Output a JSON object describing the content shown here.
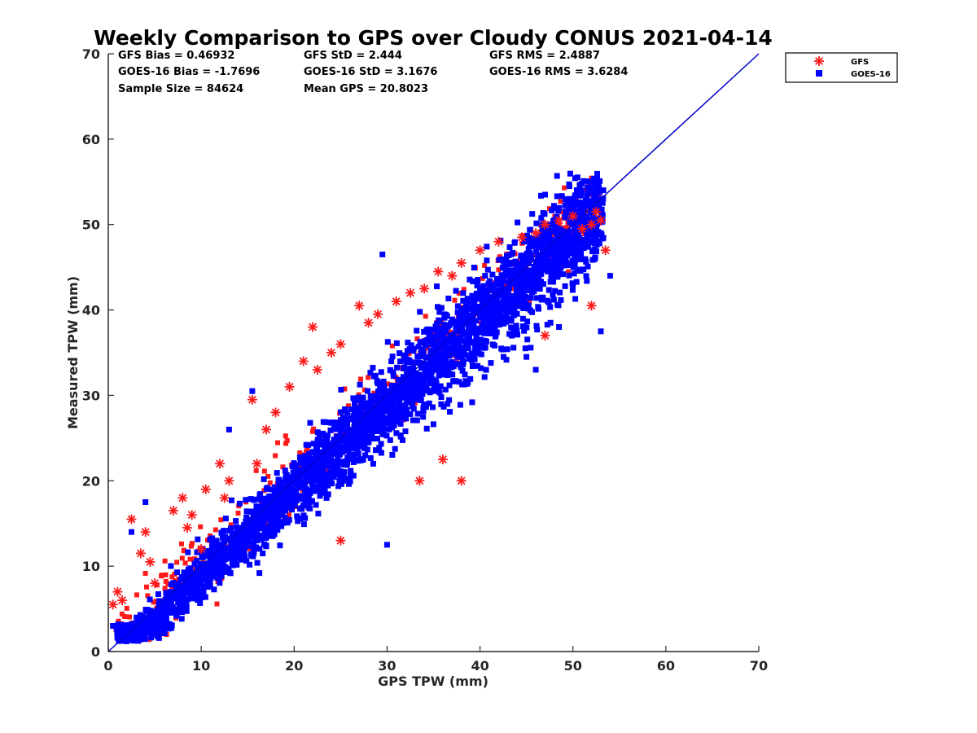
{
  "chart_data": {
    "type": "scatter",
    "title": "Weekly Comparison to GPS over Cloudy CONUS 2021-04-14",
    "xlabel": "GPS TPW (mm)",
    "ylabel": "Measured TPW (mm)",
    "xlim": [
      0,
      70
    ],
    "ylim": [
      0,
      70
    ],
    "xticks": [
      "0",
      "10",
      "20",
      "30",
      "40",
      "50",
      "60",
      "70"
    ],
    "yticks": [
      "0",
      "10",
      "20",
      "30",
      "40",
      "50",
      "60",
      "70"
    ],
    "grid": false,
    "legend_position": "outside-top-right",
    "annotations": [
      [
        "GFS Bias = 0.46932",
        "GFS StD = 2.444",
        "GFS RMS = 2.4887"
      ],
      [
        "GOES-16 Bias = -1.7696",
        "GOES-16 StD = 3.1676",
        "GOES-16 RMS = 3.6284"
      ],
      [
        "Sample Size = 84624",
        "Mean GPS = 20.8023",
        ""
      ]
    ],
    "reference_line": {
      "x": [
        0,
        70
      ],
      "y": [
        0,
        70
      ],
      "color": "#0000cc"
    },
    "series": [
      {
        "name": "GFS",
        "marker": "asterisk",
        "color": "#ff1a1a",
        "bias": 0.46932,
        "std": 2.444,
        "x": [
          0.5,
          1.0,
          1.5,
          2.5,
          3.5,
          4.0,
          4.5,
          7.0,
          8.0,
          8.5,
          10.5,
          12.0,
          13.0,
          15.5,
          17.0,
          18.0,
          19.5,
          21.0,
          22.0,
          22.5,
          24.0,
          25.0,
          27.0,
          28.0,
          29.0,
          31.0,
          32.5,
          34.0,
          35.5,
          37.0,
          38.0,
          40.0,
          42.0,
          44.5,
          46.0,
          47.0,
          48.5,
          50.0,
          51.0,
          52.0,
          52.5,
          53.0,
          53.5,
          25.0,
          33.5,
          36.0,
          38.0,
          47.0,
          52.0,
          10.0,
          5.0,
          12.5,
          16.0,
          9.0
        ],
        "y": [
          5.5,
          7.0,
          6.0,
          15.5,
          11.5,
          14.0,
          10.5,
          16.5,
          18.0,
          14.5,
          19.0,
          22.0,
          20.0,
          29.5,
          26.0,
          28.0,
          31.0,
          34.0,
          38.0,
          33.0,
          35.0,
          36.0,
          40.5,
          38.5,
          39.5,
          41.0,
          42.0,
          42.5,
          44.5,
          44.0,
          45.5,
          47.0,
          48.0,
          48.5,
          49.0,
          50.0,
          50.5,
          51.0,
          49.5,
          50.0,
          51.5,
          50.5,
          47.0,
          13.0,
          20.0,
          22.5,
          20.0,
          37.0,
          40.5,
          12.0,
          8.0,
          18.0,
          22.0,
          16.0
        ]
      },
      {
        "name": "GOES-16",
        "marker": "square",
        "color": "#0000ff",
        "bias": -1.7696,
        "std": 3.1676,
        "x": [
          0.5,
          1.0,
          2.5,
          4.0,
          29.5,
          47.0,
          49.5,
          52.0,
          52.5,
          46.0,
          45.0,
          54.0,
          53.0,
          13.0,
          15.5,
          30.0,
          36.5,
          41.0,
          50.0,
          48.5
        ],
        "y": [
          3.0,
          2.0,
          14.0,
          17.5,
          46.5,
          53.5,
          53.0,
          55.0,
          53.5,
          33.0,
          34.5,
          44.0,
          37.5,
          26.0,
          30.5,
          12.5,
          29.0,
          41.5,
          43.0,
          38.0
        ]
      }
    ]
  }
}
